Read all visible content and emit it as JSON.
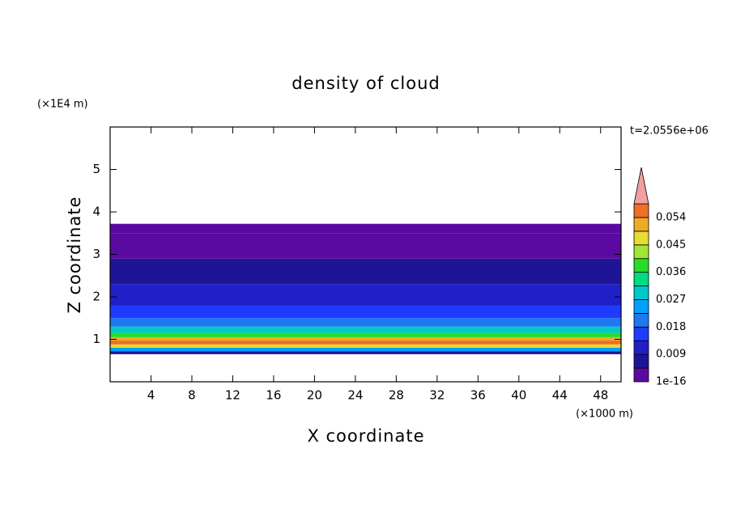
{
  "chart_data": {
    "type": "contour-profile",
    "title": "density of cloud",
    "xlabel": "X coordinate",
    "ylabel": "Z coordinate",
    "x_unit": "(×1000 m)",
    "y_unit": "(×1E4 m)",
    "time_label": "t=2.0556e+06",
    "xlim": [
      0,
      50
    ],
    "xticks": [
      4,
      8,
      12,
      16,
      20,
      24,
      28,
      32,
      36,
      40,
      44,
      48
    ],
    "ylim": [
      0,
      6
    ],
    "yticks": [
      1,
      2,
      3,
      4,
      5
    ],
    "profile": {
      "z_edges": [
        0.65,
        0.72,
        0.8,
        0.88,
        0.97,
        1.05,
        1.15,
        1.3,
        1.5,
        1.8,
        2.3,
        2.9,
        3.5,
        3.72
      ],
      "values": [
        0.006,
        0.025,
        0.045,
        0.056,
        0.05,
        0.036,
        0.027,
        0.018,
        0.014,
        0.011,
        0.005,
        0.003,
        0.002
      ]
    },
    "colorbar": {
      "levels": [
        1e-16,
        0.0045,
        0.009,
        0.0135,
        0.018,
        0.0225,
        0.027,
        0.0315,
        0.036,
        0.0405,
        0.045,
        0.0495,
        0.054,
        0.0585
      ],
      "colors": [
        "#5a0aa0",
        "#1e1496",
        "#2020c8",
        "#1e3cff",
        "#1e78f0",
        "#00a0ff",
        "#00c8c8",
        "#00dc82",
        "#28dc28",
        "#a0e632",
        "#e6dc32",
        "#f0aa28",
        "#f06e28",
        "#f0a0a0"
      ],
      "ticks": [
        1e-16,
        0.009,
        0.018,
        0.027,
        0.036,
        0.045,
        0.054
      ]
    }
  }
}
